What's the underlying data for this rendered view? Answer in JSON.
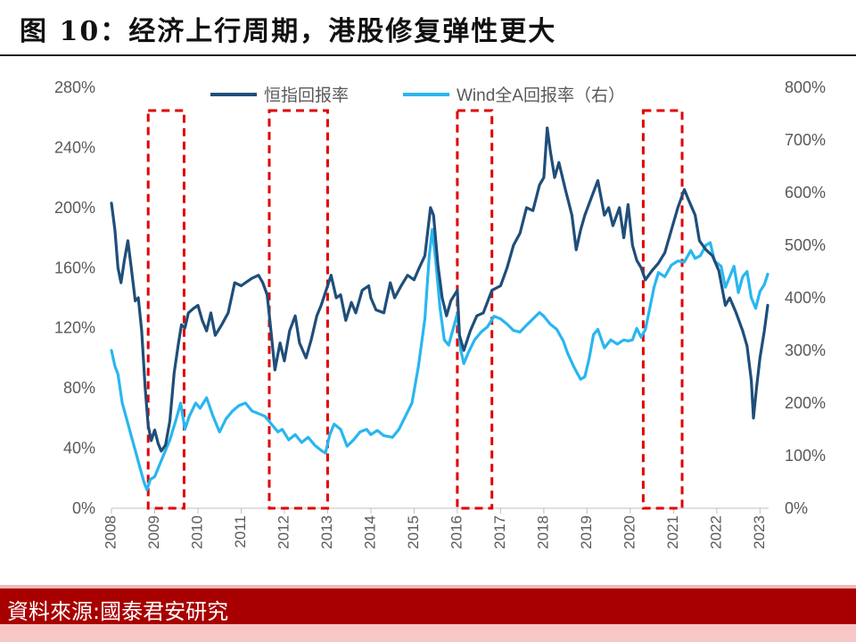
{
  "figure": {
    "title": "图 10：经济上行周期，港股修复弹性更大",
    "source": "資料來源:國泰君安研究"
  },
  "colors": {
    "hsi": "#1f4e7a",
    "wind": "#29b6f0",
    "highlight": "#e00000"
  },
  "chart_data": {
    "type": "line",
    "title": "",
    "xlabel": "",
    "ylabel": "",
    "x_ticks": [
      "2008",
      "2009",
      "2010",
      "2011",
      "2012",
      "2013",
      "2014",
      "2015",
      "2016",
      "2017",
      "2018",
      "2019",
      "2020",
      "2021",
      "2022",
      "2023"
    ],
    "y_left": {
      "ticks": [
        "0%",
        "40%",
        "80%",
        "120%",
        "160%",
        "200%",
        "240%",
        "280%"
      ],
      "range": [
        0,
        280
      ]
    },
    "y_right": {
      "ticks": [
        "0%",
        "100%",
        "200%",
        "300%",
        "400%",
        "500%",
        "600%",
        "700%",
        "800%"
      ],
      "range": [
        0,
        800
      ]
    },
    "legend": {
      "position": "top-center",
      "entries": [
        "恒指回报率",
        "Wind全A回报率（右）"
      ]
    },
    "highlight_periods": [
      [
        2008.85,
        2009.68
      ],
      [
        2011.65,
        2013.0
      ],
      [
        2016.0,
        2016.8
      ],
      [
        2020.3,
        2021.2
      ]
    ],
    "series": [
      {
        "name": "恒指回报率",
        "axis": "left",
        "points": [
          [
            2008.0,
            203
          ],
          [
            2008.08,
            185
          ],
          [
            2008.15,
            160
          ],
          [
            2008.22,
            150
          ],
          [
            2008.3,
            165
          ],
          [
            2008.38,
            178
          ],
          [
            2008.45,
            162
          ],
          [
            2008.55,
            138
          ],
          [
            2008.62,
            140
          ],
          [
            2008.7,
            118
          ],
          [
            2008.78,
            80
          ],
          [
            2008.85,
            55
          ],
          [
            2008.92,
            45
          ],
          [
            2009.0,
            52
          ],
          [
            2009.08,
            43
          ],
          [
            2009.15,
            38
          ],
          [
            2009.25,
            42
          ],
          [
            2009.35,
            58
          ],
          [
            2009.45,
            90
          ],
          [
            2009.55,
            110
          ],
          [
            2009.62,
            122
          ],
          [
            2009.7,
            120
          ],
          [
            2009.78,
            130
          ],
          [
            2009.9,
            133
          ],
          [
            2010.0,
            135
          ],
          [
            2010.1,
            125
          ],
          [
            2010.2,
            118
          ],
          [
            2010.3,
            130
          ],
          [
            2010.4,
            115
          ],
          [
            2010.55,
            122
          ],
          [
            2010.7,
            130
          ],
          [
            2010.85,
            150
          ],
          [
            2011.0,
            148
          ],
          [
            2011.1,
            150
          ],
          [
            2011.25,
            153
          ],
          [
            2011.4,
            155
          ],
          [
            2011.5,
            150
          ],
          [
            2011.6,
            142
          ],
          [
            2011.7,
            115
          ],
          [
            2011.78,
            92
          ],
          [
            2011.9,
            110
          ],
          [
            2012.0,
            98
          ],
          [
            2012.12,
            118
          ],
          [
            2012.25,
            128
          ],
          [
            2012.35,
            110
          ],
          [
            2012.5,
            100
          ],
          [
            2012.62,
            112
          ],
          [
            2012.75,
            128
          ],
          [
            2012.85,
            135
          ],
          [
            2013.0,
            148
          ],
          [
            2013.08,
            155
          ],
          [
            2013.2,
            140
          ],
          [
            2013.3,
            142
          ],
          [
            2013.42,
            125
          ],
          [
            2013.55,
            137
          ],
          [
            2013.65,
            130
          ],
          [
            2013.8,
            145
          ],
          [
            2013.95,
            148
          ],
          [
            2014.0,
            140
          ],
          [
            2014.12,
            132
          ],
          [
            2014.3,
            130
          ],
          [
            2014.45,
            150
          ],
          [
            2014.55,
            140
          ],
          [
            2014.7,
            148
          ],
          [
            2014.85,
            155
          ],
          [
            2015.0,
            152
          ],
          [
            2015.12,
            160
          ],
          [
            2015.25,
            168
          ],
          [
            2015.38,
            200
          ],
          [
            2015.45,
            195
          ],
          [
            2015.55,
            162
          ],
          [
            2015.65,
            140
          ],
          [
            2015.75,
            128
          ],
          [
            2015.85,
            138
          ],
          [
            2016.0,
            145
          ],
          [
            2016.05,
            115
          ],
          [
            2016.15,
            105
          ],
          [
            2016.3,
            118
          ],
          [
            2016.45,
            128
          ],
          [
            2016.6,
            130
          ],
          [
            2016.8,
            145
          ],
          [
            2017.0,
            148
          ],
          [
            2017.15,
            160
          ],
          [
            2017.3,
            175
          ],
          [
            2017.45,
            183
          ],
          [
            2017.6,
            200
          ],
          [
            2017.75,
            198
          ],
          [
            2017.9,
            215
          ],
          [
            2018.0,
            220
          ],
          [
            2018.08,
            253
          ],
          [
            2018.15,
            238
          ],
          [
            2018.25,
            220
          ],
          [
            2018.35,
            230
          ],
          [
            2018.5,
            212
          ],
          [
            2018.65,
            195
          ],
          [
            2018.75,
            172
          ],
          [
            2018.85,
            185
          ],
          [
            2018.95,
            195
          ],
          [
            2019.08,
            205
          ],
          [
            2019.25,
            218
          ],
          [
            2019.4,
            195
          ],
          [
            2019.5,
            200
          ],
          [
            2019.6,
            188
          ],
          [
            2019.75,
            200
          ],
          [
            2019.85,
            180
          ],
          [
            2019.95,
            202
          ],
          [
            2020.05,
            175
          ],
          [
            2020.15,
            165
          ],
          [
            2020.25,
            160
          ],
          [
            2020.35,
            152
          ],
          [
            2020.5,
            158
          ],
          [
            2020.65,
            163
          ],
          [
            2020.8,
            170
          ],
          [
            2020.95,
            185
          ],
          [
            2021.1,
            200
          ],
          [
            2021.25,
            212
          ],
          [
            2021.35,
            205
          ],
          [
            2021.5,
            195
          ],
          [
            2021.6,
            178
          ],
          [
            2021.75,
            172
          ],
          [
            2021.9,
            168
          ],
          [
            2022.05,
            158
          ],
          [
            2022.2,
            135
          ],
          [
            2022.3,
            140
          ],
          [
            2022.45,
            130
          ],
          [
            2022.6,
            118
          ],
          [
            2022.7,
            108
          ],
          [
            2022.8,
            85
          ],
          [
            2022.85,
            60
          ],
          [
            2022.92,
            80
          ],
          [
            2023.0,
            100
          ],
          [
            2023.1,
            118
          ],
          [
            2023.18,
            135
          ]
        ]
      },
      {
        "name": "Wind全A回报率（右）",
        "axis": "right",
        "points": [
          [
            2008.0,
            300
          ],
          [
            2008.08,
            270
          ],
          [
            2008.15,
            255
          ],
          [
            2008.25,
            200
          ],
          [
            2008.35,
            170
          ],
          [
            2008.45,
            140
          ],
          [
            2008.55,
            110
          ],
          [
            2008.65,
            80
          ],
          [
            2008.75,
            50
          ],
          [
            2008.82,
            35
          ],
          [
            2008.9,
            55
          ],
          [
            2009.0,
            60
          ],
          [
            2009.1,
            80
          ],
          [
            2009.2,
            100
          ],
          [
            2009.35,
            130
          ],
          [
            2009.5,
            170
          ],
          [
            2009.6,
            200
          ],
          [
            2009.7,
            150
          ],
          [
            2009.8,
            175
          ],
          [
            2009.95,
            200
          ],
          [
            2010.05,
            190
          ],
          [
            2010.2,
            210
          ],
          [
            2010.35,
            175
          ],
          [
            2010.5,
            145
          ],
          [
            2010.65,
            170
          ],
          [
            2010.8,
            185
          ],
          [
            2010.95,
            195
          ],
          [
            2011.1,
            200
          ],
          [
            2011.25,
            185
          ],
          [
            2011.4,
            180
          ],
          [
            2011.55,
            175
          ],
          [
            2011.7,
            160
          ],
          [
            2011.85,
            145
          ],
          [
            2011.95,
            150
          ],
          [
            2012.1,
            130
          ],
          [
            2012.25,
            140
          ],
          [
            2012.4,
            125
          ],
          [
            2012.55,
            135
          ],
          [
            2012.7,
            120
          ],
          [
            2012.85,
            110
          ],
          [
            2012.95,
            105
          ],
          [
            2013.05,
            140
          ],
          [
            2013.15,
            160
          ],
          [
            2013.3,
            150
          ],
          [
            2013.45,
            118
          ],
          [
            2013.6,
            130
          ],
          [
            2013.75,
            145
          ],
          [
            2013.9,
            150
          ],
          [
            2014.0,
            140
          ],
          [
            2014.15,
            148
          ],
          [
            2014.3,
            138
          ],
          [
            2014.5,
            135
          ],
          [
            2014.65,
            150
          ],
          [
            2014.8,
            175
          ],
          [
            2014.95,
            200
          ],
          [
            2015.1,
            270
          ],
          [
            2015.25,
            360
          ],
          [
            2015.35,
            480
          ],
          [
            2015.42,
            530
          ],
          [
            2015.5,
            470
          ],
          [
            2015.6,
            380
          ],
          [
            2015.7,
            320
          ],
          [
            2015.8,
            310
          ],
          [
            2015.9,
            340
          ],
          [
            2016.0,
            370
          ],
          [
            2016.08,
            300
          ],
          [
            2016.15,
            275
          ],
          [
            2016.25,
            295
          ],
          [
            2016.4,
            320
          ],
          [
            2016.55,
            335
          ],
          [
            2016.7,
            345
          ],
          [
            2016.85,
            365
          ],
          [
            2017.0,
            360
          ],
          [
            2017.15,
            350
          ],
          [
            2017.3,
            338
          ],
          [
            2017.45,
            335
          ],
          [
            2017.6,
            348
          ],
          [
            2017.75,
            360
          ],
          [
            2017.9,
            372
          ],
          [
            2018.0,
            365
          ],
          [
            2018.15,
            350
          ],
          [
            2018.3,
            340
          ],
          [
            2018.45,
            318
          ],
          [
            2018.55,
            295
          ],
          [
            2018.7,
            268
          ],
          [
            2018.85,
            245
          ],
          [
            2018.95,
            250
          ],
          [
            2019.05,
            285
          ],
          [
            2019.15,
            330
          ],
          [
            2019.25,
            340
          ],
          [
            2019.4,
            305
          ],
          [
            2019.55,
            320
          ],
          [
            2019.7,
            312
          ],
          [
            2019.85,
            320
          ],
          [
            2019.95,
            318
          ],
          [
            2020.05,
            320
          ],
          [
            2020.15,
            342
          ],
          [
            2020.25,
            325
          ],
          [
            2020.35,
            340
          ],
          [
            2020.45,
            380
          ],
          [
            2020.55,
            420
          ],
          [
            2020.65,
            448
          ],
          [
            2020.8,
            440
          ],
          [
            2020.95,
            462
          ],
          [
            2021.1,
            470
          ],
          [
            2021.25,
            468
          ],
          [
            2021.4,
            490
          ],
          [
            2021.5,
            475
          ],
          [
            2021.62,
            480
          ],
          [
            2021.75,
            500
          ],
          [
            2021.85,
            505
          ],
          [
            2021.95,
            470
          ],
          [
            2022.1,
            460
          ],
          [
            2022.2,
            420
          ],
          [
            2022.3,
            440
          ],
          [
            2022.4,
            460
          ],
          [
            2022.5,
            410
          ],
          [
            2022.6,
            440
          ],
          [
            2022.7,
            450
          ],
          [
            2022.8,
            400
          ],
          [
            2022.9,
            380
          ],
          [
            2023.0,
            412
          ],
          [
            2023.1,
            425
          ],
          [
            2023.18,
            445
          ]
        ]
      }
    ]
  }
}
